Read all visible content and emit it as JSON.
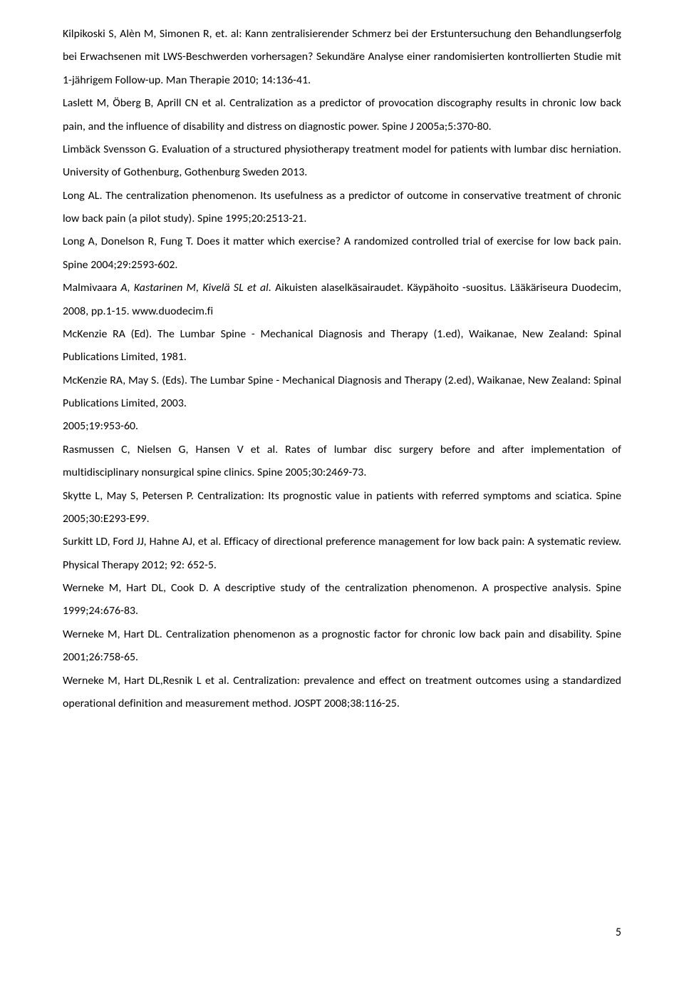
{
  "references": [
    "Kilpikoski S, Alèn M, Simonen R, et. al: Kann zentralisierender Schmerz bei der Erstuntersuchung den Behandlungserfolg bei Erwachsenen mit LWS-Beschwerden vorhersagen? Sekundäre Analyse einer randomisierten kontrollierten Studie mit 1-jährigem Follow-up. Man Therapie 2010; 14:136-41.",
    "Laslett M, Öberg B, Aprill CN et al. Centralization as a predictor of provocation discography results in chronic low back pain, and the influence of disability and distress on diagnostic power. Spine J 2005a;5:370-80.",
    "Limbäck Svensson G. Evaluation of a structured physiotherapy treatment model for patients with lumbar disc herniation. University of Gothenburg, Gothenburg Sweden 2013.",
    "Long AL. The centralization phenomenon. Its usefulness as a predictor of outcome in conservative treatment of chronic low back pain (a pilot study). Spine 1995;20:2513-21.",
    "Long A, Donelson R, Fung T. Does it matter which exercise? A randomized controlled trial of exercise for low back pain. Spine 2004;29:2593-602.",
    "Malmivaara <em>A, Kastarinen M, Kivelä SL et al.</em> Aikuisten alaselkäsairaudet. Käypähoito -suositus. Lääkäriseura Duodecim, 2008, pp.1-15. www.duodecim.fi",
    "McKenzie RA (Ed). The Lumbar Spine - Mechanical Diagnosis and Therapy (1.ed), Waikanae, New Zealand: Spinal Publications Limited, 1981.",
    "McKenzie RA, May S. (Eds). The Lumbar Spine - Mechanical Diagnosis and Therapy (2.ed), Waikanae, New Zealand: Spinal Publications Limited, 2003.",
    "2005;19:953-60.",
    "Rasmussen C, Nielsen G, Hansen V et al. Rates of lumbar disc surgery before and after implementation of multidisciplinary nonsurgical spine clinics. Spine 2005;30:2469-73.",
    "Skytte L, May S, Petersen P. Centralization: Its prognostic value in patients with referred symptoms and sciatica. Spine 2005;30:E293-E99.",
    "Surkitt LD, Ford JJ, Hahne AJ, et al. Efficacy of directional preference management for low back pain: A systematic review. Physical Therapy 2012; 92: 652-5.",
    "Werneke M, Hart DL, Cook D. A descriptive study of the centralization phenomenon. A prospective analysis. Spine 1999;24:676-83.",
    "Werneke M, Hart DL. Centralization phenomenon as a prognostic factor for chronic low back pain and disability. Spine 2001;26:758-65.",
    "Werneke M, Hart DL,Resnik L et al. Centralization: prevalence and effect on treatment outcomes using a standardized operational definition and measurement method. JOSPT 2008;38:116-25."
  ],
  "pageNumber": "5",
  "style": {
    "fontFamily": "Calibri, Arial, sans-serif",
    "fontSizePx": 15.8,
    "lineHeight": 2.05,
    "textColor": "#000000",
    "backgroundColor": "#ffffff",
    "pageWidthPx": 960,
    "pageHeightPx": 1377,
    "textAlign": "justify"
  }
}
